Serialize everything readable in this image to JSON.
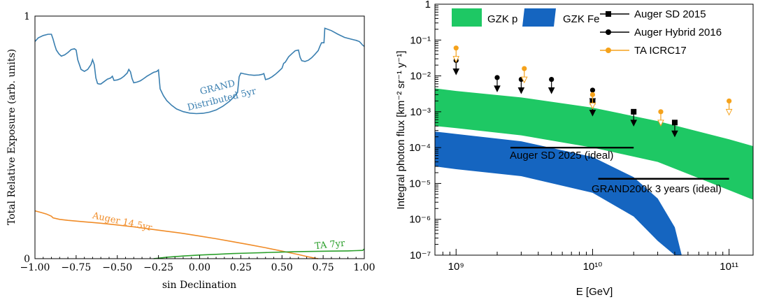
{
  "colors": {
    "grand": "#3a7fb0",
    "auger": "#f08c28",
    "ta": "#2ca02c",
    "gzk_p": "#1ec864",
    "gzk_fe": "#1565c0",
    "ta_icrc": "#f5a21b",
    "black": "#000000"
  },
  "chart_data": [
    {
      "type": "line",
      "xlabel": "sin Declination",
      "ylabel": "Total Relative Exposure (arb. units)",
      "xlim": [
        -1.0,
        1.0
      ],
      "ylim": [
        0,
        1
      ],
      "xticks": [
        "−1.00",
        "−0.75",
        "−0.50",
        "−0.25",
        "0.00",
        "0.25",
        "0.50",
        "0.75",
        "1.00"
      ],
      "yticks": [
        "0",
        "1"
      ],
      "grid": false,
      "series": [
        {
          "name": "GRAND Distributed 5yr",
          "label_lines": [
            "GRAND",
            "Distributed 5yr"
          ],
          "x": [
            -1.0,
            -0.98,
            -0.95,
            -0.92,
            -0.9,
            -0.89,
            -0.88,
            -0.87,
            -0.855,
            -0.84,
            -0.82,
            -0.8,
            -0.78,
            -0.76,
            -0.75,
            -0.74,
            -0.72,
            -0.7,
            -0.68,
            -0.66,
            -0.65,
            -0.64,
            -0.63,
            -0.62,
            -0.61,
            -0.6,
            -0.58,
            -0.56,
            -0.54,
            -0.53,
            -0.52,
            -0.5,
            -0.48,
            -0.46,
            -0.44,
            -0.43,
            -0.42,
            -0.41,
            -0.4,
            -0.38,
            -0.36,
            -0.34,
            -0.32,
            -0.3,
            -0.28,
            -0.26,
            -0.25,
            -0.24,
            -0.22,
            -0.2,
            -0.17,
            -0.14,
            -0.1,
            -0.06,
            -0.02,
            0.02,
            0.06,
            0.1,
            0.14,
            0.18,
            0.21,
            0.23,
            0.24,
            0.25,
            0.27,
            0.3,
            0.33,
            0.36,
            0.38,
            0.39,
            0.4,
            0.42,
            0.44,
            0.46,
            0.48,
            0.5,
            0.51,
            0.52,
            0.54,
            0.56,
            0.58,
            0.6,
            0.61,
            0.62,
            0.64,
            0.66,
            0.68,
            0.7,
            0.72,
            0.73,
            0.74,
            0.755,
            0.76,
            0.8,
            0.84,
            0.88,
            0.92,
            0.95,
            0.97,
            0.98,
            0.99,
            1.0
          ],
          "y": [
            0.895,
            0.91,
            0.92,
            0.925,
            0.925,
            0.905,
            0.88,
            0.86,
            0.845,
            0.835,
            0.84,
            0.85,
            0.862,
            0.865,
            0.86,
            0.82,
            0.78,
            0.772,
            0.78,
            0.8,
            0.82,
            0.8,
            0.745,
            0.722,
            0.72,
            0.72,
            0.73,
            0.74,
            0.745,
            0.752,
            0.735,
            0.737,
            0.742,
            0.752,
            0.765,
            0.78,
            0.77,
            0.742,
            0.725,
            0.728,
            0.733,
            0.742,
            0.752,
            0.76,
            0.768,
            0.772,
            0.778,
            0.7,
            0.672,
            0.652,
            0.632,
            0.617,
            0.606,
            0.6,
            0.598,
            0.599,
            0.604,
            0.613,
            0.628,
            0.648,
            0.668,
            0.685,
            0.75,
            0.765,
            0.762,
            0.758,
            0.756,
            0.757,
            0.76,
            0.763,
            0.738,
            0.742,
            0.75,
            0.76,
            0.772,
            0.785,
            0.805,
            0.81,
            0.832,
            0.845,
            0.857,
            0.86,
            0.83,
            0.816,
            0.813,
            0.818,
            0.828,
            0.842,
            0.858,
            0.875,
            0.89,
            0.89,
            0.95,
            0.94,
            0.925,
            0.912,
            0.905,
            0.9,
            0.895,
            0.888,
            0.88,
            0.875
          ]
        },
        {
          "name": "Auger 14.5yr",
          "x": [
            -1.0,
            -0.96,
            -0.93,
            -0.9,
            -0.89,
            -0.85,
            -0.8,
            -0.7,
            -0.6,
            -0.5,
            -0.4,
            -0.3,
            -0.2,
            -0.1,
            0.0,
            0.1,
            0.2,
            0.3,
            0.4,
            0.5,
            0.6,
            0.65,
            0.7,
            0.72
          ],
          "y": [
            0.197,
            0.19,
            0.184,
            0.175,
            0.168,
            0.162,
            0.158,
            0.152,
            0.146,
            0.139,
            0.131,
            0.122,
            0.113,
            0.104,
            0.093,
            0.082,
            0.07,
            0.058,
            0.045,
            0.031,
            0.017,
            0.009,
            0.002,
            0.0
          ]
        },
        {
          "name": "TA 7yr",
          "x": [
            -0.28,
            -0.25,
            -0.2,
            -0.1,
            0.0,
            0.1,
            0.2,
            0.3,
            0.4,
            0.5,
            0.6,
            0.7,
            0.8,
            0.9,
            0.95,
            0.99,
            1.0
          ],
          "y": [
            0.0,
            0.002,
            0.006,
            0.011,
            0.015,
            0.018,
            0.021,
            0.023,
            0.025,
            0.027,
            0.029,
            0.03,
            0.031,
            0.032,
            0.033,
            0.034,
            0.04
          ]
        }
      ]
    },
    {
      "type": "scatter",
      "xlabel": "E [GeV]",
      "ylabel": "Integral photon flux [km⁻² sr⁻¹ y⁻¹]",
      "xscale": "log",
      "yscale": "log",
      "xlim": [
        700000000.0,
        150000000000.0
      ],
      "ylim": [
        1e-07,
        1.0
      ],
      "xticks": [
        "10⁹",
        "10¹⁰",
        "10¹¹"
      ],
      "yticks": [
        "1",
        "10⁻¹",
        "10⁻²",
        "10⁻³",
        "10⁻⁴",
        "10⁻⁵",
        "10⁻⁶",
        "10⁻⁷"
      ],
      "grid": false,
      "legend_placement": "top",
      "bands": [
        {
          "name": "GZK p",
          "x": [
            700000000.0,
            1000000000.0,
            3000000000.0,
            10000000000.0,
            30000000000.0,
            100000000000.0,
            150000000000.0
          ],
          "upper": [
            0.0045,
            0.0038,
            0.0025,
            0.0013,
            0.00055,
            0.00017,
            0.00011
          ],
          "lower": [
            0.0004,
            0.00035,
            0.00022,
            0.0001,
            4e-05,
            6.5e-06,
            3.5e-06
          ]
        },
        {
          "name": "GZK Fe",
          "x": [
            700000000.0,
            1000000000.0,
            3000000000.0,
            10000000000.0,
            20000000000.0,
            30000000000.0,
            40000000000.0,
            45000000000.0
          ],
          "upper": [
            0.00028,
            0.00024,
            0.00015,
            5.5e-05,
            1.5e-05,
            3.8e-06,
            6e-07,
            1e-07
          ],
          "lower": [
            3e-05,
            2.5e-05,
            1.6e-05,
            5.5e-06,
            1.2e-06,
            2.5e-07,
            1e-07,
            1e-07
          ]
        }
      ],
      "series": [
        {
          "name": "Auger SD 2015",
          "marker": "square",
          "upper_limit": true,
          "x": [
            10000000000.0,
            20000000000.0,
            40000000000.0
          ],
          "y": [
            0.0019,
            0.001,
            0.0005
          ]
        },
        {
          "name": "Auger Hybrid 2016",
          "marker": "circle",
          "upper_limit": true,
          "x": [
            1000000000.0,
            2000000000.0,
            3000000000.0,
            5000000000.0,
            10000000000.0
          ],
          "y": [
            0.027,
            0.009,
            0.008,
            0.008,
            0.004
          ]
        },
        {
          "name": "TA ICRC17",
          "marker": "circle",
          "upper_limit": true,
          "x": [
            1000000000.0,
            3160000000.0,
            10000000000.0,
            31600000000.0,
            100000000000.0
          ],
          "y": [
            0.06,
            0.016,
            0.003,
            0.001,
            0.002
          ]
        }
      ],
      "sensitivities": [
        {
          "name": "Auger SD 2025 (ideal)",
          "x": [
            2500000000.0,
            20000000000.0
          ],
          "y": 0.0001
        },
        {
          "name": "GRAND200k 3 years (ideal)",
          "x": [
            11000000000.0,
            100000000000.0
          ],
          "y": 1.35e-05
        }
      ]
    }
  ]
}
